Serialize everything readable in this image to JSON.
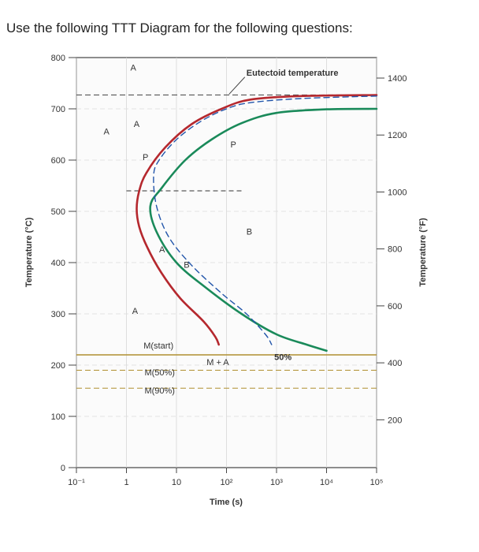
{
  "heading": "Use the following TTT Diagram for the following questions:",
  "chart_data": {
    "type": "line",
    "title": "",
    "xlabel": "Time (s)",
    "ylabel_left": "Temperature (°C)",
    "ylabel_right": "Temperature (°F)",
    "x_scale": "log",
    "xlim": [
      0.1,
      100000
    ],
    "ylim": [
      0,
      800
    ],
    "x_ticks": [
      {
        "value": 0.1,
        "label": "10⁻¹"
      },
      {
        "value": 1,
        "label": "1"
      },
      {
        "value": 10,
        "label": "10"
      },
      {
        "value": 100,
        "label": "10²"
      },
      {
        "value": 1000,
        "label": "10³"
      },
      {
        "value": 10000,
        "label": "10⁴"
      },
      {
        "value": 100000,
        "label": "10⁵"
      }
    ],
    "y_ticks_left": [
      {
        "value": 0,
        "label": "0"
      },
      {
        "value": 100,
        "label": "100"
      },
      {
        "value": 200,
        "label": "200"
      },
      {
        "value": 300,
        "label": "300"
      },
      {
        "value": 400,
        "label": "400"
      },
      {
        "value": 500,
        "label": "500"
      },
      {
        "value": 600,
        "label": "600"
      },
      {
        "value": 700,
        "label": "700"
      },
      {
        "value": 800,
        "label": "800"
      }
    ],
    "y_ticks_right": [
      {
        "value_f": 200,
        "label": "200"
      },
      {
        "value_f": 400,
        "label": "400"
      },
      {
        "value_f": 600,
        "label": "600"
      },
      {
        "value_f": 800,
        "label": "800"
      },
      {
        "value_f": 1000,
        "label": "1000"
      },
      {
        "value_f": 1200,
        "label": "1200"
      },
      {
        "value_f": 1400,
        "label": "1400"
      }
    ],
    "series": [
      {
        "key": "start",
        "color": "#b5282e",
        "points": [
          [
            100000,
            727
          ],
          [
            3000,
            725
          ],
          [
            300,
            718
          ],
          [
            80,
            700
          ],
          [
            20,
            670
          ],
          [
            6,
            625
          ],
          [
            2.5,
            575
          ],
          [
            1.8,
            540
          ],
          [
            1.6,
            505
          ],
          [
            1.8,
            470
          ],
          [
            2.6,
            430
          ],
          [
            5,
            380
          ],
          [
            12,
            330
          ],
          [
            35,
            285
          ],
          [
            60,
            255
          ],
          [
            70,
            240
          ]
        ]
      },
      {
        "key": "finish",
        "color": "#1a8a5a",
        "points": [
          [
            100000,
            700
          ],
          [
            10000,
            699
          ],
          [
            1000,
            692
          ],
          [
            200,
            672
          ],
          [
            50,
            640
          ],
          [
            15,
            600
          ],
          [
            5,
            545
          ],
          [
            3,
            510
          ],
          [
            4,
            460
          ],
          [
            10,
            400
          ],
          [
            40,
            350
          ],
          [
            200,
            300
          ],
          [
            1000,
            260
          ],
          [
            4000,
            240
          ],
          [
            10000,
            228
          ]
        ]
      },
      {
        "key": "fifty",
        "color": "#2255aa",
        "dashed": true,
        "points": [
          [
            100000,
            725
          ],
          [
            3000,
            720
          ],
          [
            300,
            712
          ],
          [
            100,
            700
          ],
          [
            30,
            675
          ],
          [
            10,
            640
          ],
          [
            4.5,
            600
          ],
          [
            3.5,
            570
          ],
          [
            4,
            510
          ],
          [
            7,
            450
          ],
          [
            20,
            395
          ],
          [
            80,
            340
          ],
          [
            250,
            300
          ],
          [
            600,
            260
          ],
          [
            800,
            240
          ]
        ]
      }
    ],
    "horizontal_lines": [
      {
        "key": "eutectoid",
        "y": 727,
        "dashed": true,
        "color": "#555555"
      },
      {
        "key": "ms",
        "y": 220,
        "dashed": false,
        "color": "#b09030"
      },
      {
        "key": "m50",
        "y": 190,
        "dashed": true,
        "color": "#b09030"
      },
      {
        "key": "m90",
        "y": 155,
        "dashed": true,
        "color": "#b09030"
      }
    ],
    "pearlite_bainite_boundary": {
      "y": 540,
      "x_from": 1.0,
      "x_to": 200
    },
    "annotations": [
      {
        "key": "eutectoid",
        "text": "Eutectoid temperature",
        "x": 250,
        "y": 765
      },
      {
        "key": "a_top",
        "text": "A",
        "x": 1.2,
        "y": 775
      },
      {
        "key": "a_left",
        "text": "A",
        "x": 0.35,
        "y": 650
      },
      {
        "key": "a_plus",
        "text": "A",
        "x": 1.4,
        "y": 665
      },
      {
        "key": "p_mid",
        "text": "P",
        "x": 2.1,
        "y": 600
      },
      {
        "key": "p_right",
        "text": "P",
        "x": 120,
        "y": 625
      },
      {
        "key": "a_plus_b",
        "text": "A",
        "x": 4.5,
        "y": 420
      },
      {
        "key": "b_mid",
        "text": "B",
        "x": 14,
        "y": 390
      },
      {
        "key": "b_right",
        "text": "B",
        "x": 250,
        "y": 455
      },
      {
        "key": "a_low",
        "text": "A",
        "x": 1.3,
        "y": 300
      },
      {
        "key": "mstart",
        "text": "M(start)",
        "x": 2.2,
        "y": 232
      },
      {
        "key": "m_plus_a",
        "text": "M + A",
        "x": 40,
        "y": 200
      },
      {
        "key": "fifty_pct",
        "text": "50%",
        "x": 900,
        "y": 210
      },
      {
        "key": "m50",
        "text": "M(50%)",
        "x": 2.3,
        "y": 180
      },
      {
        "key": "m90",
        "text": "M(90%)",
        "x": 2.3,
        "y": 145
      }
    ]
  }
}
